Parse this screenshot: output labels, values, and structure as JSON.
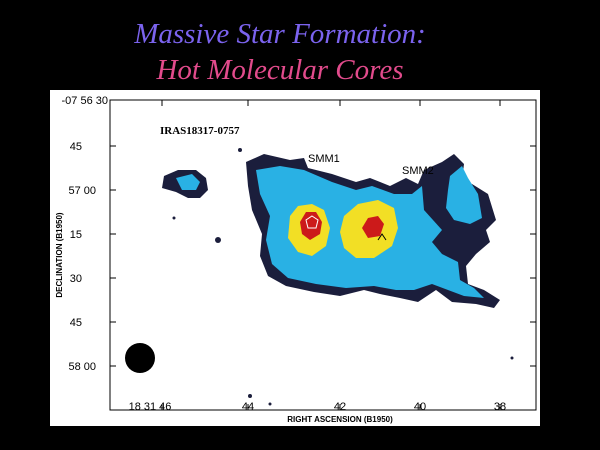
{
  "slide": {
    "title_line1": "Massive Star Formation:",
    "title_line2": "Hot Molecular Cores",
    "title_line1_color": "#7b63ee",
    "title_line2_color": "#e24b8c",
    "background": "#000000"
  },
  "figure": {
    "source_label": "IRAS18317-0757",
    "labels": {
      "smm1": "SMM1",
      "smm2": "SMM2"
    },
    "y_axis": {
      "label": "DECLINATION (B1950)",
      "ticks": [
        "-07 56 30",
        "45",
        "57 00",
        "15",
        "30",
        "45",
        "58 00"
      ]
    },
    "x_axis": {
      "label": "RIGHT ASCENSION (B1950)",
      "ticks": [
        "18 31 46",
        "44",
        "42",
        "40",
        "38"
      ]
    },
    "contour_colors": {
      "outer": "#1b1e3c",
      "low": "#29b1e4",
      "mid": "#f2df25",
      "peak": "#cc1a1a"
    },
    "beam_icon": "filled-ellipse"
  }
}
